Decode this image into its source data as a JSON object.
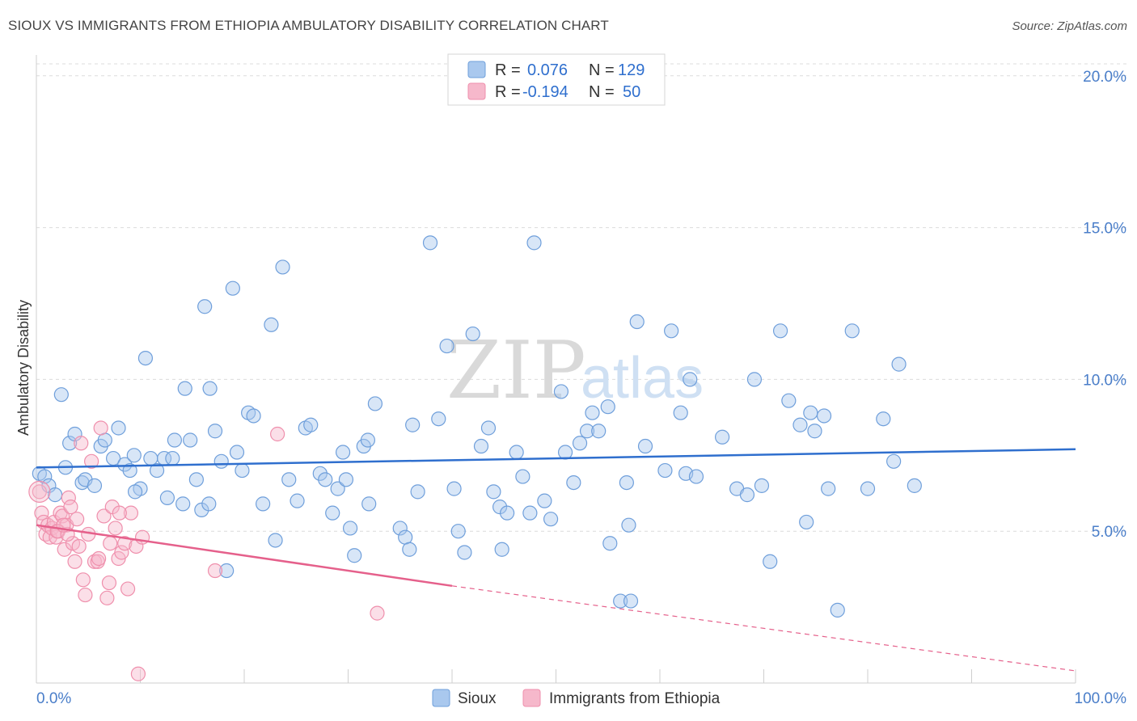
{
  "title": "SIOUX VS IMMIGRANTS FROM ETHIOPIA AMBULATORY DISABILITY CORRELATION CHART",
  "source": "Source: ZipAtlas.com",
  "watermark": {
    "zip": "ZIP",
    "atlas": "atlas"
  },
  "legend": {
    "rows": [
      {
        "r_label": "R =",
        "r_value": "0.076",
        "n_label": "N =",
        "n_value": "129",
        "color": "#a9c8ee"
      },
      {
        "r_label": "R =",
        "r_value": "-0.194",
        "n_label": "N =",
        "n_value": "50",
        "color": "#f6b8cb"
      }
    ]
  },
  "chart_data": {
    "type": "scatter",
    "title": "SIOUX VS IMMIGRANTS FROM ETHIOPIA AMBULATORY DISABILITY CORRELATION CHART",
    "xlabel": "",
    "ylabel": "Ambulatory Disability",
    "xlim": [
      0,
      100
    ],
    "ylim": [
      0,
      20.5
    ],
    "x_tick_labels": [
      "0.0%",
      "100.0%"
    ],
    "y_ticks": [
      5,
      10,
      15,
      20
    ],
    "y_tick_labels": [
      "5.0%",
      "10.0%",
      "15.0%",
      "20.0%"
    ],
    "grid": true,
    "legend_position": "top-center",
    "series": [
      {
        "name": "Sioux",
        "color": "#6f9fdb",
        "fill": "#a9c8ee",
        "trend": {
          "x0": 0,
          "y0": 7.1,
          "x1": 100,
          "y1": 7.7,
          "color": "#2f6fce"
        },
        "points": [
          [
            0.3,
            6.9
          ],
          [
            0.8,
            6.8
          ],
          [
            1.2,
            6.5
          ],
          [
            1.8,
            6.2
          ],
          [
            2.8,
            7.1
          ],
          [
            3.2,
            7.9
          ],
          [
            3.7,
            8.2
          ],
          [
            4.4,
            6.6
          ],
          [
            4.7,
            6.7
          ],
          [
            5.6,
            6.5
          ],
          [
            6.2,
            7.8
          ],
          [
            6.6,
            8.0
          ],
          [
            7.4,
            7.4
          ],
          [
            7.9,
            8.4
          ],
          [
            8.5,
            7.2
          ],
          [
            9.0,
            7.0
          ],
          [
            9.4,
            7.5
          ],
          [
            10.0,
            6.4
          ],
          [
            10.5,
            10.7
          ],
          [
            11.0,
            7.4
          ],
          [
            11.6,
            7.0
          ],
          [
            12.3,
            7.4
          ],
          [
            12.6,
            6.1
          ],
          [
            13.1,
            7.4
          ],
          [
            13.3,
            8.0
          ],
          [
            14.1,
            5.9
          ],
          [
            14.3,
            9.7
          ],
          [
            14.8,
            8.0
          ],
          [
            15.4,
            6.7
          ],
          [
            15.9,
            5.7
          ],
          [
            16.2,
            12.4
          ],
          [
            16.6,
            5.9
          ],
          [
            17.2,
            8.3
          ],
          [
            17.8,
            7.3
          ],
          [
            18.3,
            3.7
          ],
          [
            18.9,
            13.0
          ],
          [
            19.3,
            7.6
          ],
          [
            19.8,
            7.0
          ],
          [
            20.4,
            8.9
          ],
          [
            20.9,
            8.8
          ],
          [
            21.8,
            5.9
          ],
          [
            22.6,
            11.8
          ],
          [
            23.0,
            4.7
          ],
          [
            23.7,
            13.7
          ],
          [
            24.3,
            6.7
          ],
          [
            25.1,
            6.0
          ],
          [
            25.9,
            8.4
          ],
          [
            26.4,
            8.5
          ],
          [
            27.3,
            6.9
          ],
          [
            27.8,
            6.7
          ],
          [
            28.5,
            5.6
          ],
          [
            29.0,
            6.4
          ],
          [
            29.5,
            7.6
          ],
          [
            29.8,
            6.7
          ],
          [
            30.2,
            5.1
          ],
          [
            30.6,
            4.2
          ],
          [
            31.5,
            7.8
          ],
          [
            32.0,
            5.9
          ],
          [
            32.6,
            9.2
          ],
          [
            35.0,
            5.1
          ],
          [
            35.5,
            4.8
          ],
          [
            35.9,
            4.4
          ],
          [
            36.2,
            8.5
          ],
          [
            36.7,
            6.3
          ],
          [
            37.9,
            14.5
          ],
          [
            38.7,
            8.7
          ],
          [
            39.5,
            11.1
          ],
          [
            40.2,
            6.4
          ],
          [
            40.6,
            5.0
          ],
          [
            41.2,
            4.3
          ],
          [
            42.0,
            11.5
          ],
          [
            42.8,
            7.8
          ],
          [
            43.5,
            8.4
          ],
          [
            44.0,
            6.3
          ],
          [
            44.6,
            5.8
          ],
          [
            45.3,
            5.6
          ],
          [
            46.2,
            7.6
          ],
          [
            46.8,
            6.8
          ],
          [
            47.5,
            5.6
          ],
          [
            47.9,
            14.5
          ],
          [
            48.9,
            6.0
          ],
          [
            49.5,
            5.4
          ],
          [
            50.5,
            9.6
          ],
          [
            50.9,
            7.6
          ],
          [
            51.7,
            6.6
          ],
          [
            52.3,
            7.9
          ],
          [
            53.0,
            8.3
          ],
          [
            54.1,
            8.3
          ],
          [
            55.0,
            9.1
          ],
          [
            55.2,
            4.6
          ],
          [
            56.2,
            2.7
          ],
          [
            56.8,
            6.6
          ],
          [
            57.2,
            2.7
          ],
          [
            57.8,
            11.9
          ],
          [
            58.6,
            7.8
          ],
          [
            60.5,
            7.0
          ],
          [
            61.1,
            11.6
          ],
          [
            62.5,
            6.9
          ],
          [
            62.9,
            10.0
          ],
          [
            63.5,
            6.8
          ],
          [
            66.0,
            8.1
          ],
          [
            67.4,
            6.4
          ],
          [
            68.4,
            6.2
          ],
          [
            69.1,
            10.0
          ],
          [
            69.8,
            6.5
          ],
          [
            70.6,
            4.0
          ],
          [
            71.6,
            11.6
          ],
          [
            72.4,
            9.3
          ],
          [
            73.5,
            8.5
          ],
          [
            74.1,
            5.3
          ],
          [
            74.5,
            8.9
          ],
          [
            74.9,
            8.3
          ],
          [
            75.8,
            8.8
          ],
          [
            76.2,
            6.4
          ],
          [
            77.1,
            2.4
          ],
          [
            78.5,
            11.6
          ],
          [
            80.0,
            6.4
          ],
          [
            81.5,
            8.7
          ],
          [
            82.5,
            7.3
          ],
          [
            83.0,
            10.5
          ],
          [
            84.5,
            6.5
          ],
          [
            53.5,
            8.9
          ],
          [
            16.7,
            9.7
          ],
          [
            31.9,
            8.0
          ],
          [
            44.8,
            4.4
          ],
          [
            9.5,
            6.3
          ],
          [
            2.4,
            9.5
          ],
          [
            62.0,
            8.9
          ],
          [
            57.0,
            5.2
          ]
        ]
      },
      {
        "name": "Immigrants from Ethiopia",
        "color": "#ef8fac",
        "fill": "#f6b8cb",
        "trend": {
          "x0": 0,
          "y0": 5.2,
          "x1": 40,
          "y1": 3.2,
          "color": "#e5608b",
          "dashed_to": {
            "x": 100,
            "y": 0.4
          }
        },
        "points": [
          [
            0.3,
            6.3
          ],
          [
            0.5,
            5.6
          ],
          [
            0.7,
            5.3
          ],
          [
            0.9,
            4.9
          ],
          [
            1.1,
            5.2
          ],
          [
            1.3,
            4.8
          ],
          [
            1.5,
            5.1
          ],
          [
            1.7,
            5.3
          ],
          [
            1.9,
            4.8
          ],
          [
            2.1,
            5.0
          ],
          [
            2.3,
            5.6
          ],
          [
            2.5,
            5.5
          ],
          [
            2.7,
            4.4
          ],
          [
            2.9,
            5.2
          ],
          [
            3.1,
            6.1
          ],
          [
            3.3,
            5.8
          ],
          [
            3.5,
            4.6
          ],
          [
            3.7,
            4.0
          ],
          [
            3.9,
            5.4
          ],
          [
            4.1,
            4.5
          ],
          [
            4.3,
            7.9
          ],
          [
            4.5,
            3.4
          ],
          [
            4.7,
            2.9
          ],
          [
            5.0,
            4.9
          ],
          [
            5.3,
            7.3
          ],
          [
            5.6,
            4.0
          ],
          [
            5.9,
            4.0
          ],
          [
            6.2,
            8.4
          ],
          [
            6.5,
            5.5
          ],
          [
            6.8,
            2.8
          ],
          [
            7.0,
            3.3
          ],
          [
            7.3,
            5.8
          ],
          [
            7.6,
            5.1
          ],
          [
            7.9,
            4.1
          ],
          [
            8.2,
            4.3
          ],
          [
            8.5,
            4.6
          ],
          [
            8.8,
            3.1
          ],
          [
            9.1,
            5.6
          ],
          [
            9.6,
            4.5
          ],
          [
            10.2,
            4.8
          ],
          [
            2.0,
            5.0
          ],
          [
            3.0,
            4.9
          ],
          [
            6.0,
            4.1
          ],
          [
            7.1,
            4.6
          ],
          [
            8.0,
            5.6
          ],
          [
            17.2,
            3.7
          ],
          [
            23.2,
            8.2
          ],
          [
            32.8,
            2.3
          ],
          [
            9.8,
            0.3
          ],
          [
            2.6,
            5.2
          ]
        ]
      }
    ]
  },
  "bottom_legend": [
    {
      "label": "Sioux",
      "color": "#a9c8ee"
    },
    {
      "label": "Immigrants from Ethiopia",
      "color": "#f6b8cb"
    }
  ]
}
